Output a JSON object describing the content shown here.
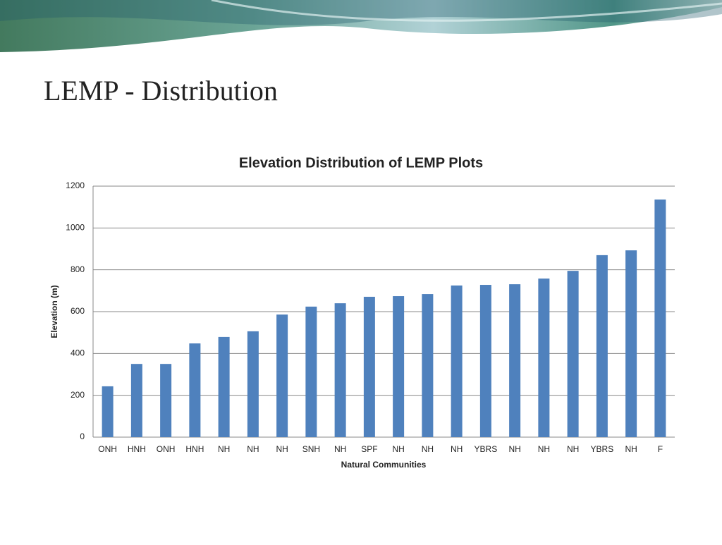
{
  "slide_title": "LEMP - Distribution",
  "chart_data": {
    "type": "bar",
    "title": "Elevation Distribution of LEMP Plots",
    "x_label": "Natural Communities",
    "y_label": "Elevation (m)",
    "categories": [
      "ONH",
      "HNH",
      "ONH",
      "HNH",
      "NH",
      "NH",
      "NH",
      "SNH",
      "NH",
      "SPF",
      "NH",
      "NH",
      "NH",
      "YBRS",
      "NH",
      "NH",
      "NH",
      "YBRS",
      "NH",
      "F"
    ],
    "values": [
      243,
      350,
      350,
      448,
      479,
      506,
      586,
      624,
      640,
      671,
      674,
      684,
      725,
      728,
      731,
      758,
      795,
      870,
      893,
      1136
    ],
    "color": "#4f81bd",
    "ylim": [
      0,
      1200
    ],
    "yticks": [
      0,
      200,
      400,
      600,
      800,
      1000,
      1200
    ],
    "grid": true
  }
}
